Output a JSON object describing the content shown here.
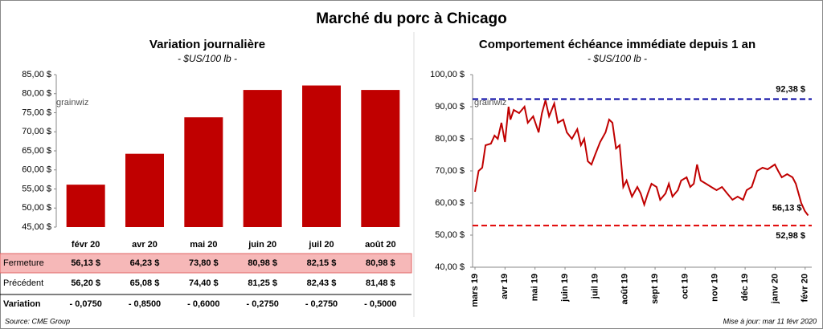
{
  "title": "Marché du porc à Chicago",
  "watermark": "grainwiz",
  "source": "Source: CME Group",
  "updated": "Mise à jour: mar 11 févr 2020",
  "chart_data": [
    {
      "type": "bar",
      "title": "Variation journalière",
      "subtitle": "- $US/100 lb -",
      "categories": [
        "févr 20",
        "avr 20",
        "mai 20",
        "juin 20",
        "juil 20",
        "août 20"
      ],
      "values": [
        56.13,
        64.23,
        73.8,
        80.98,
        82.15,
        80.98
      ],
      "value_labels": [
        "56,13 $",
        "64,23 $",
        "73,80 $",
        "80,98 $",
        "82,15 $",
        "80,98 $"
      ],
      "color": "#c00000",
      "ylim": [
        45,
        85
      ],
      "yticks": [
        {
          "value": 45,
          "label": "45,00 $"
        },
        {
          "value": 50,
          "label": "50,00 $"
        },
        {
          "value": 55,
          "label": "55,00 $"
        },
        {
          "value": 60,
          "label": "60,00 $"
        },
        {
          "value": 65,
          "label": "65,00 $"
        },
        {
          "value": 70,
          "label": "70,00 $"
        },
        {
          "value": 75,
          "label": "75,00 $"
        },
        {
          "value": 80,
          "label": "80,00 $"
        },
        {
          "value": 85,
          "label": "85,00 $"
        }
      ]
    },
    {
      "type": "line",
      "title": "Comportement  échéance immédiate depuis 1 an",
      "subtitle": "- $US/100 lb -",
      "x": [
        0,
        0.12,
        0.24,
        0.35,
        0.53,
        0.65,
        0.76,
        0.88,
        1.0,
        1.12,
        1.18,
        1.29,
        1.47,
        1.65,
        1.76,
        1.94,
        2.12,
        2.23,
        2.35,
        2.47,
        2.64,
        2.76,
        2.94,
        3.06,
        3.23,
        3.41,
        3.53,
        3.64,
        3.76,
        3.88,
        4.0,
        4.17,
        4.35,
        4.47,
        4.58,
        4.7,
        4.82,
        4.94,
        5.05,
        5.23,
        5.41,
        5.52,
        5.64,
        5.76,
        5.88,
        6.05,
        6.17,
        6.35,
        6.46,
        6.58,
        6.76,
        6.87,
        7.05,
        7.17,
        7.29,
        7.4,
        7.52,
        7.7,
        7.87,
        8.05,
        8.23,
        8.4,
        8.58,
        8.75,
        8.93,
        9.05,
        9.22,
        9.4,
        9.58,
        9.75,
        9.99,
        10.1,
        10.22,
        10.4,
        10.58,
        10.69,
        10.87,
        10.99,
        11.1
      ],
      "series": [
        {
          "color": "#c00000",
          "values": [
            63.5,
            70,
            71,
            78,
            78.5,
            81,
            80,
            85,
            79,
            90,
            86,
            89,
            88,
            90,
            85,
            87,
            82,
            88,
            92,
            87,
            91,
            85,
            86,
            82,
            80,
            83,
            78,
            80,
            73,
            72,
            75,
            79,
            82,
            86,
            85,
            77,
            78,
            65,
            67,
            62,
            65,
            63,
            59.5,
            63,
            66,
            65,
            61,
            63,
            66,
            62,
            64,
            67,
            68,
            65,
            66,
            72,
            67,
            66,
            65,
            64,
            65,
            63,
            61,
            62,
            61,
            64,
            65,
            70,
            71,
            70.5,
            72,
            70,
            68,
            69,
            68,
            66,
            60,
            57.5,
            56.13
          ]
        }
      ],
      "annotations": [
        {
          "x": 11.1,
          "y": 56.13,
          "text": "56,13 $"
        }
      ],
      "reference_lines": [
        {
          "value": 92.38,
          "label": "92,38 $",
          "color": "#0000a0"
        },
        {
          "value": 52.98,
          "label": "52,98 $",
          "color": "#e00000"
        }
      ],
      "xlim": [
        -0.08,
        11.22
      ],
      "xticks": [
        {
          "value": 0,
          "label": "mars 19"
        },
        {
          "value": 1,
          "label": "avr 19"
        },
        {
          "value": 2,
          "label": "mai 19"
        },
        {
          "value": 3,
          "label": "juin 19"
        },
        {
          "value": 4,
          "label": "juil 19"
        },
        {
          "value": 5,
          "label": "août 19"
        },
        {
          "value": 6,
          "label": "sept 19"
        },
        {
          "value": 7,
          "label": "oct 19"
        },
        {
          "value": 8,
          "label": "nov 19"
        },
        {
          "value": 9,
          "label": "déc 19"
        },
        {
          "value": 10,
          "label": "janv 20"
        },
        {
          "value": 11,
          "label": "févr 20"
        }
      ],
      "ylim": [
        40,
        100
      ],
      "yticks": [
        {
          "value": 40,
          "label": "40,00 $"
        },
        {
          "value": 50,
          "label": "50,00 $"
        },
        {
          "value": 60,
          "label": "60,00 $"
        },
        {
          "value": 70,
          "label": "70,00 $"
        },
        {
          "value": 80,
          "label": "80,00 $"
        },
        {
          "value": 90,
          "label": "90,00 $"
        },
        {
          "value": 100,
          "label": "100,00 $"
        }
      ]
    }
  ],
  "table": {
    "rows": [
      {
        "label": "Fermeture"
      },
      {
        "label": "Précédent",
        "values": [
          "56,20 $",
          "65,08 $",
          "74,40 $",
          "81,25 $",
          "82,43 $",
          "81,48 $"
        ]
      },
      {
        "label": "Variation",
        "values": [
          "- 0,0750",
          "- 0,8500",
          "- 0,6000",
          "- 0,2750",
          "- 0,2750",
          "- 0,5000"
        ]
      }
    ]
  }
}
